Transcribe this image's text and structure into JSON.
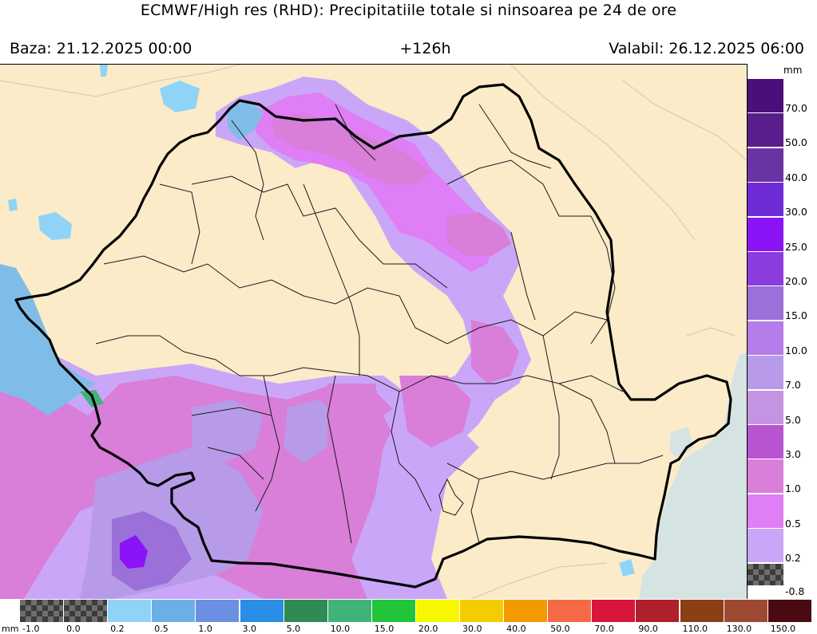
{
  "header": {
    "title": "ECMWF/High res (RHD): Precipitatiile totale si ninsoarea pe 24 de ore",
    "base": "Baza: 21.12.2025 00:00",
    "lead": "+126h",
    "valid": "Valabil: 26.12.2025 06:00"
  },
  "right_legend": {
    "unit": "mm",
    "levels": [
      {
        "label": "70.0",
        "color": "#4b0f7a"
      },
      {
        "label": "50.0",
        "color": "#5a1d8c"
      },
      {
        "label": "40.0",
        "color": "#6a33a3"
      },
      {
        "label": "30.0",
        "color": "#6f2bd6"
      },
      {
        "label": "25.0",
        "color": "#8a14f5"
      },
      {
        "label": "20.0",
        "color": "#8a3cdd"
      },
      {
        "label": "15.0",
        "color": "#9b70d8"
      },
      {
        "label": "10.0",
        "color": "#b47ce8"
      },
      {
        "label": "7.0",
        "color": "#b79be8"
      },
      {
        "label": "5.0",
        "color": "#c493e2"
      },
      {
        "label": "3.0",
        "color": "#b854cf"
      },
      {
        "label": "1.0",
        "color": "#d97ed9"
      },
      {
        "label": "0.5",
        "color": "#e07ef5"
      },
      {
        "label": "0.2",
        "color": "#caa6f8"
      },
      {
        "label": "-0.8",
        "color": "checker"
      }
    ]
  },
  "bottom_legend": {
    "unit": "mm",
    "levels": [
      {
        "label": "-1.0",
        "color": "checker"
      },
      {
        "label": "0.0",
        "color": "checker"
      },
      {
        "label": "0.2",
        "color": "#8fd4f7"
      },
      {
        "label": "0.5",
        "color": "#6ab0e6"
      },
      {
        "label": "1.0",
        "color": "#6b8fe3"
      },
      {
        "label": "3.0",
        "color": "#2b8ee6"
      },
      {
        "label": "5.0",
        "color": "#2f8a55"
      },
      {
        "label": "10.0",
        "color": "#3fb47a"
      },
      {
        "label": "15.0",
        "color": "#22c43a"
      },
      {
        "label": "20.0",
        "color": "#f7f700"
      },
      {
        "label": "30.0",
        "color": "#f4cc00"
      },
      {
        "label": "40.0",
        "color": "#f29a00"
      },
      {
        "label": "50.0",
        "color": "#f56a45"
      },
      {
        "label": "70.0",
        "color": "#d8153a"
      },
      {
        "label": "90.0",
        "color": "#b0202a"
      },
      {
        "label": "110.0",
        "color": "#8c3e14"
      },
      {
        "label": "130.0",
        "color": "#9e4a32"
      },
      {
        "label": "150.0",
        "color": "#4a0a12"
      }
    ]
  },
  "colors": {
    "land": "#fbebc9",
    "sea": "#d6e3e3",
    "snow_blue": "#7fbde8",
    "border": "#000000"
  }
}
